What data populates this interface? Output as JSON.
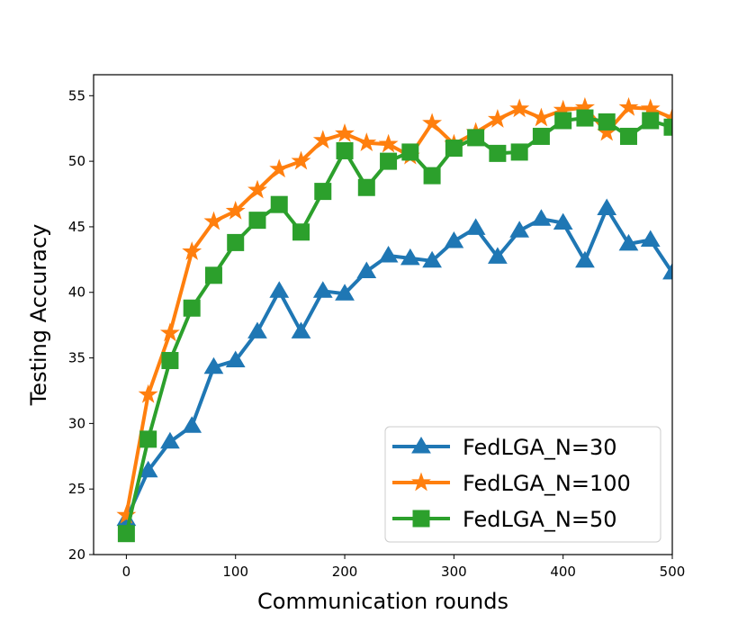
{
  "chart_data": {
    "type": "line",
    "title": "",
    "xlabel": "Communication rounds",
    "ylabel": "Testing Accuracy",
    "xlim": [
      -30,
      500
    ],
    "ylim": [
      20,
      56.6
    ],
    "xticks": [
      0,
      100,
      200,
      300,
      400,
      500
    ],
    "yticks": [
      20,
      25,
      30,
      35,
      40,
      45,
      50,
      55
    ],
    "grid": false,
    "legend_position": "lower-right",
    "x": [
      0,
      20,
      40,
      60,
      80,
      100,
      120,
      140,
      160,
      180,
      200,
      220,
      240,
      260,
      280,
      300,
      320,
      340,
      360,
      380,
      400,
      420,
      440,
      460,
      480,
      500
    ],
    "series": [
      {
        "name": "FedLGA_N=30",
        "color": "#1f77b4",
        "marker": "triangle",
        "values": [
          22.7,
          26.4,
          28.6,
          29.8,
          34.3,
          34.8,
          37.0,
          40.1,
          37.0,
          40.1,
          39.9,
          41.6,
          42.8,
          42.6,
          42.4,
          43.9,
          44.9,
          42.7,
          44.7,
          45.6,
          45.3,
          42.4,
          46.4,
          43.7,
          44.0,
          41.5
        ]
      },
      {
        "name": "FedLGA_N=100",
        "color": "#ff7f0e",
        "marker": "star",
        "values": [
          23.0,
          32.2,
          36.9,
          43.1,
          45.4,
          46.2,
          47.8,
          49.4,
          50.0,
          51.6,
          52.1,
          51.4,
          51.3,
          50.4,
          52.9,
          51.3,
          52.2,
          53.2,
          54.0,
          53.3,
          53.9,
          54.1,
          52.2,
          54.1,
          54.0,
          53.3
        ]
      },
      {
        "name": "FedLGA_N=50",
        "color": "#2ca02c",
        "marker": "square",
        "values": [
          21.6,
          28.8,
          34.8,
          38.8,
          41.3,
          43.8,
          45.5,
          46.7,
          44.6,
          47.7,
          50.8,
          48.0,
          50.0,
          50.7,
          48.9,
          51.0,
          51.8,
          50.6,
          50.7,
          51.9,
          53.1,
          53.3,
          53.0,
          51.9,
          53.1,
          52.6
        ]
      }
    ]
  }
}
